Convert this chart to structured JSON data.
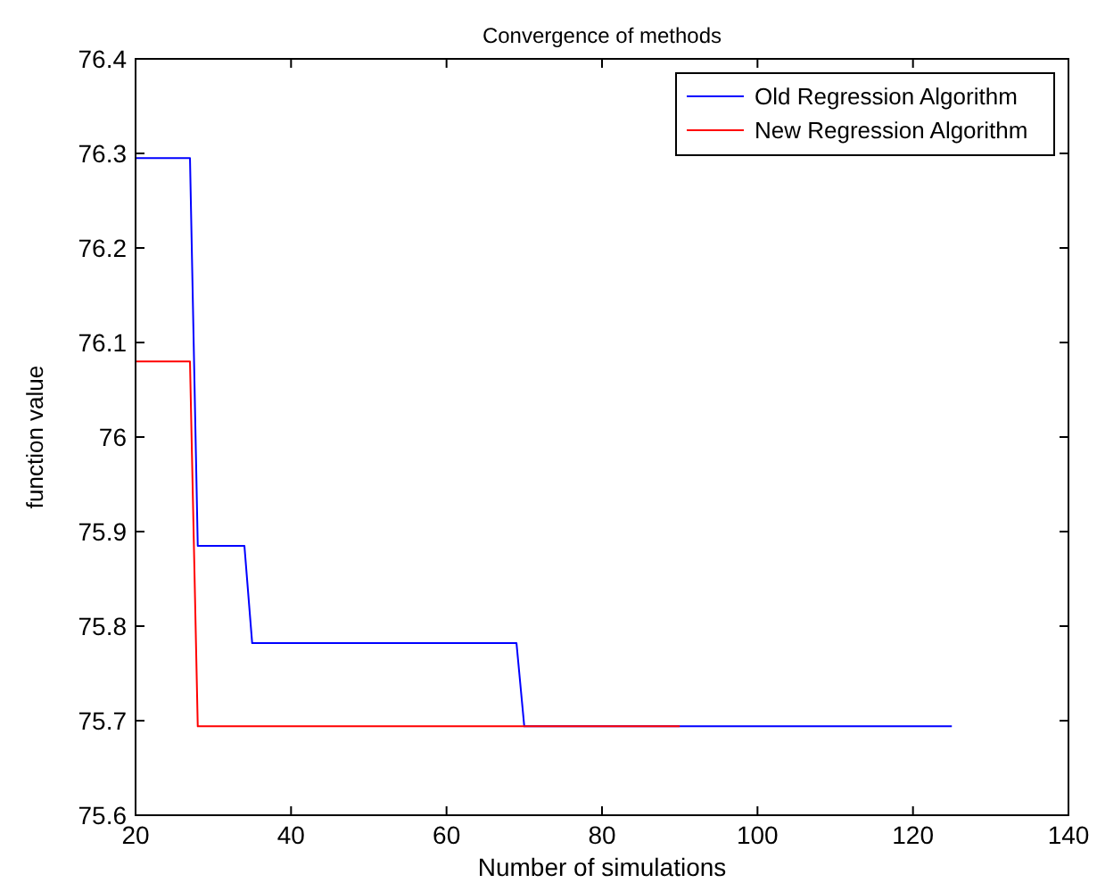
{
  "chart_data": {
    "type": "line",
    "title": "Convergence of methods",
    "xlabel": "Number of simulations",
    "ylabel": "function value",
    "series": [
      {
        "name": "Old Regression Algorithm",
        "color": "#0000ff",
        "x": [
          20,
          27,
          28,
          34,
          35,
          69,
          70,
          125
        ],
        "values": [
          76.295,
          76.295,
          75.885,
          75.885,
          75.782,
          75.782,
          75.694,
          75.694
        ]
      },
      {
        "name": "New Regression Algorithm",
        "color": "#ff0000",
        "x": [
          20,
          27,
          28,
          90
        ],
        "values": [
          76.08,
          76.08,
          75.694,
          75.694
        ]
      }
    ],
    "xlim": [
      20,
      140
    ],
    "xticks": [
      20,
      40,
      60,
      80,
      100,
      120,
      140
    ],
    "ylim": [
      75.6,
      76.4
    ],
    "yticks": [
      75.6,
      75.7,
      75.8,
      75.9,
      76,
      76.1,
      76.2,
      76.3,
      76.4
    ],
    "grid": false,
    "legend": "top right",
    "line_style": "solid",
    "marker": "none"
  }
}
